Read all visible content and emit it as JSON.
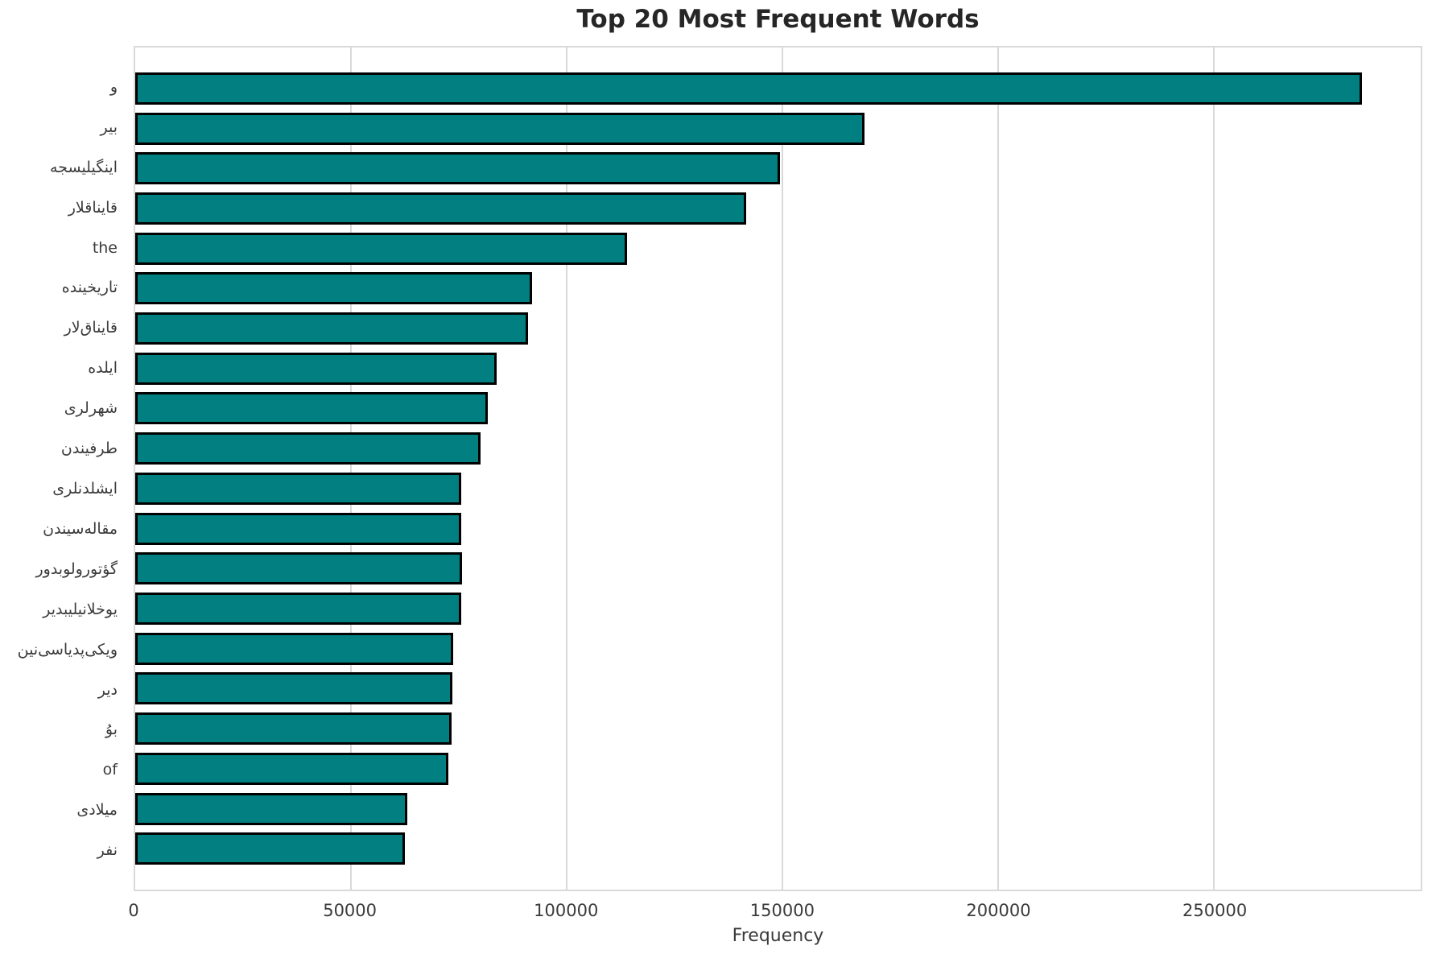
{
  "figure": {
    "title": "Top 20 Most Frequent Words",
    "xlabel": "Frequency"
  },
  "chart_data": {
    "type": "bar",
    "orientation": "horizontal",
    "title": "Top 20 Most Frequent Words",
    "xlabel": "Frequency",
    "ylabel": "",
    "categories": [
      "و",
      "بیر",
      "اینگیلیسجه",
      "قایناقلار",
      "the",
      "تاریخینده",
      "قایناق‌لار",
      "ایلده",
      "شهرلری",
      "طرفیندن",
      "ایشلدنلری",
      "مقاله‌سیندن",
      "گؤتورولوبدور",
      "یوخلانیلیبدیر",
      "ویکی‌پدیاسی‌نین",
      "دیر",
      "بوُ",
      "of",
      "میلادی",
      "نفر"
    ],
    "values": [
      284300,
      169000,
      149500,
      141700,
      114000,
      92000,
      91000,
      83700,
      81800,
      80000,
      75600,
      75600,
      75700,
      75600,
      73700,
      73600,
      73300,
      72500,
      63000,
      62500
    ],
    "xlim": [
      0,
      298000
    ],
    "xticks": [
      0,
      50000,
      100000,
      150000,
      200000,
      250000
    ],
    "grid": true,
    "legend": false,
    "bar_color": "#028081",
    "bar_edge_color": "#000000",
    "grid_color": "#d9d9d9",
    "plot_border_color": "#d9d9d9",
    "title_color": "#262626",
    "tick_color": "#3b3b3b"
  }
}
